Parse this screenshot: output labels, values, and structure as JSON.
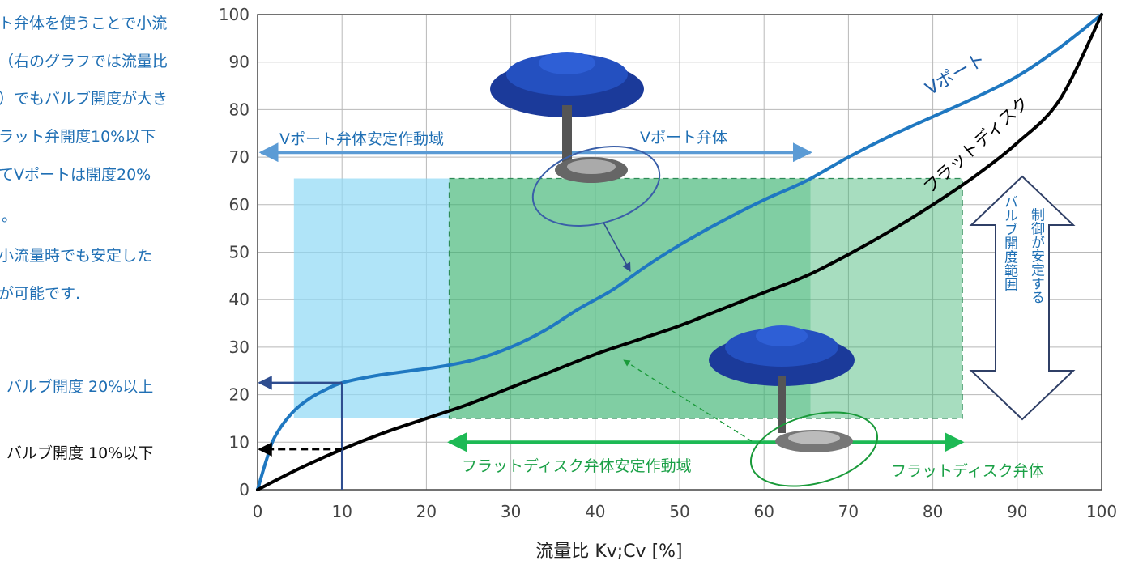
{
  "side_text": {
    "lines": [
      "ト弁体を使うことで小流",
      "（右のグラフでは流量比",
      "）でもバルブ開度が大き",
      "ラット弁開度10%以下",
      "てVポートは開度20%",
      "。",
      "小流量時でも安定した",
      "が可能です."
    ],
    "v_open_label": "バルブ開度 20%以上",
    "flat_open_label": "バルブ開度 10%以下"
  },
  "annotations": {
    "v_port_curve": "Vポート",
    "flat_disk_curve": "フラットディスク",
    "v_port_range": "Vポート弁体安定作動域",
    "v_port_body": "Vポート弁体",
    "flat_disk_range": "フラットディスク弁体安定作動域",
    "flat_disk_body": "フラットディスク弁体",
    "stable_range": "制御が安定する",
    "stable_range_col2": "バルブ開度範囲"
  },
  "colors": {
    "v_curve": "#1f78c1",
    "flat_curve": "#000000",
    "v_region": "#8fd8f5",
    "flat_region": "#3cb371",
    "green_arrow": "#1db954",
    "blue_arrow": "#5b9bd5",
    "dark_arrow": "#2e4d8f",
    "valve_blue": "#1b3a9a"
  },
  "chart_data": {
    "type": "line",
    "title": "",
    "xlabel": "流量比 Kv;Cv [%]",
    "ylabel": "",
    "xlim": [
      0,
      100
    ],
    "ylim": [
      0,
      100
    ],
    "x_ticks": [
      "0",
      "10",
      "20",
      "30",
      "40",
      "50",
      "60",
      "70",
      "80",
      "90",
      "100"
    ],
    "y_ticks": [
      "0",
      "10",
      "20",
      "30",
      "40",
      "50",
      "60",
      "70",
      "80",
      "90",
      "100"
    ],
    "grid": true,
    "series": [
      {
        "name": "Vポート",
        "x": [
          0,
          1,
          2,
          4,
          6,
          8,
          10,
          14,
          18,
          22,
          26,
          30,
          34,
          38,
          42,
          46,
          50,
          55,
          60,
          65,
          70,
          75,
          80,
          85,
          90,
          95,
          100
        ],
        "y": [
          0,
          6,
          11,
          16,
          19,
          21,
          22.5,
          24,
          25,
          26,
          27.5,
          30,
          33.5,
          38,
          42,
          47,
          51.5,
          56.5,
          61,
          65,
          70,
          74.5,
          78.5,
          82.5,
          87,
          93,
          100
        ]
      },
      {
        "name": "フラットディスク",
        "x": [
          0,
          5,
          10,
          15,
          20,
          25,
          30,
          35,
          40,
          45,
          50,
          55,
          60,
          65,
          70,
          75,
          80,
          85,
          90,
          95,
          100
        ],
        "y": [
          0,
          4.5,
          8.5,
          12,
          15,
          18,
          21.5,
          25,
          28.5,
          31.5,
          34.5,
          38,
          41.5,
          45,
          49.5,
          54.5,
          60,
          66,
          73,
          82,
          100
        ]
      }
    ],
    "regions": [
      {
        "name": "Vポート弁体安定作動域",
        "x": [
          4.3,
          22.7
        ],
        "y": [
          15,
          65.5
        ]
      },
      {
        "name": "overlap",
        "x": [
          22.7,
          65.5
        ],
        "y": [
          15,
          65.5
        ]
      },
      {
        "name": "フラットディスク弁体安定作動域",
        "x": [
          65.5,
          83.5
        ],
        "y": [
          15,
          65.5
        ]
      }
    ],
    "range_arrows": [
      {
        "name": "Vポート弁体安定作動域",
        "x": [
          0,
          65.5
        ],
        "y": 71
      },
      {
        "name": "フラットディスク弁体安定作動域",
        "x": [
          22.7,
          83.5
        ],
        "y": 10
      }
    ],
    "reference_lines": [
      {
        "name": "バルブ開度 20%以上",
        "x": 10,
        "y": 22.5
      },
      {
        "name": "バルブ開度 10%以下",
        "x": 10,
        "y": 8.5
      }
    ]
  }
}
